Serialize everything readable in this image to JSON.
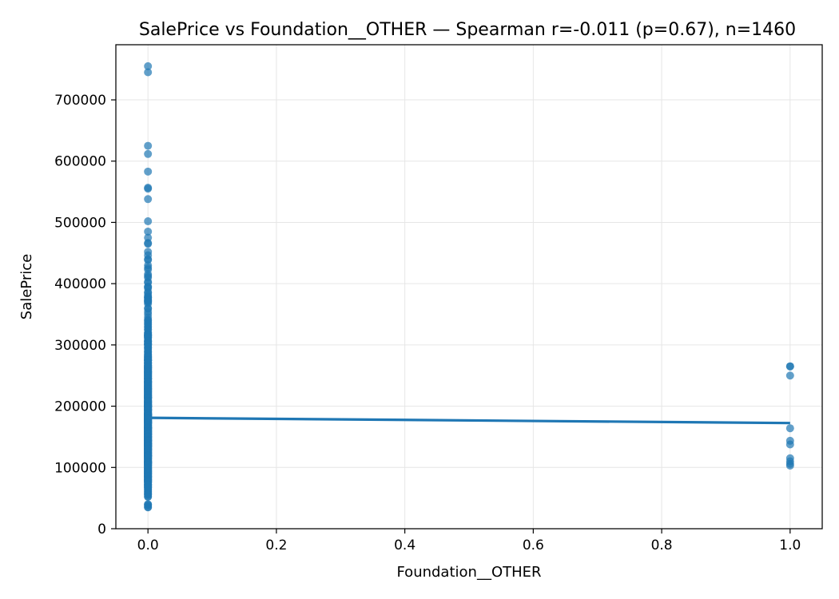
{
  "chart_data": {
    "type": "scatter",
    "title": "SalePrice vs Foundation__OTHER — Spearman r=-0.011 (p=0.67), n=1460",
    "xlabel": "Foundation__OTHER",
    "ylabel": "SalePrice",
    "xlim": [
      -0.05,
      1.05
    ],
    "ylim": [
      0,
      790000
    ],
    "xticks": [
      0.0,
      0.2,
      0.4,
      0.6,
      0.8,
      1.0
    ],
    "xtick_labels": [
      "0.0",
      "0.2",
      "0.4",
      "0.6",
      "0.8",
      "1.0"
    ],
    "yticks": [
      0,
      100000,
      200000,
      300000,
      400000,
      500000,
      600000,
      700000
    ],
    "ytick_labels": [
      "0",
      "100000",
      "200000",
      "300000",
      "400000",
      "500000",
      "600000",
      "700000"
    ],
    "grid": true,
    "colors": {
      "points": "#1f77b4",
      "line": "#1f77b4",
      "grid": "#e6e6e6"
    },
    "series": [
      {
        "values_at_x0": [
          755000,
          745000,
          625000,
          611657,
          582933,
          556581,
          555000,
          538000,
          501837,
          485000,
          475000,
          466500,
          465000,
          451950,
          446261,
          440000,
          438780,
          430000,
          426000,
          423000,
          415298,
          412500,
          410000,
          402861,
          402000,
          395192,
          394617,
          392500,
          386250,
          385000,
          381000,
          378500,
          377426,
          377500,
          375000,
          372500,
          372402,
          370878,
          369900,
          367294,
          360000,
          359100,
          354000,
          350000,
          345000,
          341000,
          340000,
          337500,
          335000,
          333168,
          330000,
          328900,
          325300,
          325000,
          320000,
          319900,
          318000,
          317000,
          315750,
          315500,
          315000,
          314813,
          313000,
          312500,
          311872,
          310000,
          307000,
          306000,
          305900,
          305000,
          303477,
          302000,
          301500,
          301000,
          300000,
          299800,
          297000,
          295493,
          295000,
          293077,
          290000,
          289000,
          287090,
          285000,
          284000,
          282922,
          281213,
          281000,
          280000,
          279500,
          278000,
          277500,
          277000,
          275500,
          275000,
          274970,
          274900,
          274725,
          274300,
          272000,
          271900,
          271000,
          270000,
          269790,
          269500,
          268000,
          267000,
          266500,
          265979,
          265900,
          265000,
          264561,
          264132,
          263435,
          263000,
          262500,
          262280,
          262000,
          261500,
          260400,
          260000,
          259500,
          259000,
          258000,
          257500,
          257000,
          256300,
          256000,
          255900,
          255500,
          255000,
          254900,
          254000,
          253293,
          253000,
          252678,
          252000,
          251000,
          250580,
          250000,
          249700,
          248900,
          248328,
          248000,
          247000,
          246578,
          245700,
          245500,
          245350,
          245000,
          244600,
          244400,
          244000,
          243000,
          242000,
          241500,
          241000,
          240000,
          239900,
          239799,
          239686,
          239500,
          239000,
          238500,
          238000,
          237500,
          237000,
          236500,
          236000,
          235128,
          235000,
          234000,
          233230,
          233170,
          233000,
          232600,
          232000,
          231500,
          230500,
          230348,
          230000,
          229456,
          229000,
          228950,
          228500,
          228000,
          227875,
          227680,
          227000,
          226700,
          226000,
          225000,
          224900,
          224500,
          224000,
          223500,
          223000,
          222500,
          222000,
          221500,
          221000,
          220000,
          219500,
          219210,
          219000,
          218000,
          217500,
          217000,
          216837,
          216500,
          216000,
          215200,
          215000,
          214900,
          214500,
          214000,
          213500,
          213490,
          213250,
          213000,
          212900,
          212000,
          211000,
          210000,
          209500,
          208900,
          208500,
          208300,
          208000,
          207500,
          207000,
          206900,
          206300,
          206000,
          205950,
          205000,
          204900,
          204750,
          204000,
          203000,
          202900,
          202665,
          202500,
          202000,
          201800,
          201000,
          200624,
          200500,
          200141,
          200100,
          200000,
          199900,
          199500,
          199300,
          199000,
          198900,
          198500,
          197900,
          197500,
          197000,
          196500,
          196000,
          195400,
          195000,
          194700,
          194500,
          194201,
          194000,
          193879,
          193500,
          193000,
          192500,
          192140,
          192000,
          191000,
          190000,
          189950,
          189000,
          188700,
          188500,
          188000,
          187750,
          187500,
          187100,
          187000,
          186800,
          186700,
          186500,
          186000,
          185900,
          185850,
          185750,
          185500,
          185000,
          184900,
          184750,
          184100,
          184000,
          183900,
          183500,
          183200,
          183000,
          182900,
          182000,
          181900,
          181500,
          181134,
          181000,
          180500,
          180000,
          179900,
          179665,
          179600,
          179540,
          179400,
          179200,
          179000,
          178900,
          178740,
          178400,
          178000,
          177500,
          177000,
          176500,
          176485,
          176432,
          176000,
          175900,
          175500,
          175000,
          174900,
          174500,
          174190,
          174000,
          173900,
          173733,
          173500,
          173000,
          172785,
          172500,
          172400,
          172000,
          171900,
          171750,
          171500,
          171000,
          170000,
          169990,
          169500,
          169000,
          168500,
          168000,
          167900,
          167500,
          167240,
          167000,
          166000,
          165600,
          165500,
          165400,
          165150,
          165000,
          164990,
          164900,
          164700,
          164500,
          164000,
          163990,
          163900,
          163500,
          163000,
          162900,
          162500,
          162000,
          161750,
          161500,
          161000,
          160000,
          159950,
          159895,
          159500,
          159434,
          159000,
          158900,
          158500,
          158000,
          157900,
          157500,
          157000,
          156932,
          156500,
          156000,
          155900,
          155835,
          155000,
          154900,
          154500,
          154300,
          154000,
          153900,
          153575,
          153500,
          153337,
          153000,
          152000,
          151500,
          151400,
          151000,
          150900,
          150750,
          150500,
          150000,
          149900,
          149700,
          149500,
          149350,
          149300,
          149000,
          148500,
          148000,
          147500,
          147400,
          147000,
          146800,
          146500,
          146000,
          145500,
          145250,
          145000,
          144900,
          144500,
          144152,
          144000,
          143900,
          143750,
          143500,
          143250,
          143000,
          142953,
          142600,
          142500,
          142125,
          142000,
          141500,
          141000,
          140200,
          140000,
          139950,
          139900,
          139600,
          139500,
          139400,
          139000,
          138887,
          138800,
          138500,
          138000,
          137900,
          137500,
          137450,
          137000,
          136905,
          136500,
          136000,
          135960,
          135900,
          135750,
          135500,
          135000,
          134900,
          134800,
          134500,
          134450,
          134432,
          134000,
          133900,
          133700,
          133500,
          133000,
          132500,
          132250,
          132000,
          131500,
          131400,
          131000,
          130500,
          130250,
          130000,
          129900,
          129500,
          129000,
          128950,
          128900,
          128500,
          128200,
          128000,
          127500,
          127000,
          126500,
          126175,
          126000,
          125500,
          125000,
          124900,
          124500,
          124000,
          123600,
          123500,
          123000,
          122900,
          122500,
          122000,
          121600,
          121500,
          121000,
          120500,
          120000,
          119900,
          119750,
          119500,
          119200,
          119000,
          118964,
          118858,
          118500,
          118400,
          118000,
          117500,
          117000,
          116900,
          116500,
          116050,
          116000,
          115000,
          114504,
          114500,
          114000,
          113722,
          113000,
          112500,
          112000,
          111250,
          111000,
          110500,
          110000,
          109900,
          109500,
          109008,
          109000,
          108959,
          108500,
          108480,
          108000,
          107900,
          107500,
          107400,
          107000,
          106500,
          106250,
          106000,
          105900,
          105500,
          105000,
          104900,
          104000,
          103600,
          103200,
          103000,
          102776,
          102000,
          101800,
          101000,
          100000,
          99900,
          99500,
          98600,
          98300,
          98000,
          97500,
          97000,
          96500,
          96000,
          95000,
          94750,
          94500,
          94000,
          93500,
          93000,
          92900,
          92000,
          91500,
          91300,
          91000,
          90350,
          90000,
          89500,
          89471,
          89000,
          88000,
          87500,
          87000,
          86900,
          86000,
          85500,
          85400,
          85000,
          84900,
          84500,
          84000,
          83500,
          83000,
          82500,
          82000,
          81000,
          80500,
          80000,
          79900,
          79500,
          79000,
          78500,
          78000,
          77500,
          77000,
          76500,
          76000,
          75500,
          75000,
          73000,
          72500,
          72000,
          71500,
          71000,
          70000,
          68500,
          68400,
          68000,
          67000,
          66500,
          64500,
          64000,
          62383,
          61000,
          60000,
          58500,
          57000,
          55993,
          55000,
          52500,
          52000,
          40000,
          39300,
          37900,
          35311,
          34900
        ],
        "values_at_x1": [
          265000,
          265000,
          250000,
          164000,
          143500,
          137500,
          115000,
          110000,
          106000,
          103000
        ]
      }
    ],
    "regression": {
      "x": [
        0,
        1
      ],
      "y": [
        181000,
        172500
      ]
    }
  }
}
